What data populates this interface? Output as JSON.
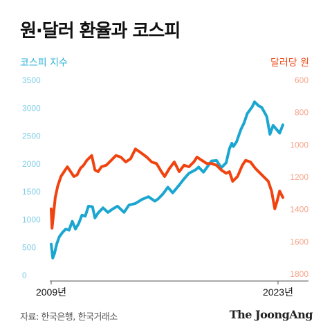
{
  "title": "원·달러 환율과 코스피",
  "source": "자료: 한국은행, 한국거래소",
  "brand": "The JoongAng",
  "colors": {
    "kospi": "#1aa6d0",
    "kospi_tick": "#7fcde6",
    "krw": "#f0430f",
    "krw_tick": "#f6a48c",
    "axis": "#555555"
  },
  "chart_data": {
    "type": "line",
    "x_labels": [
      "2009년",
      "2023년"
    ],
    "x_range": [
      2009,
      2023.3
    ],
    "left_axis": {
      "label": "코스피 지수",
      "ticks": [
        "3500",
        "3000",
        "2500",
        "2000",
        "1500",
        "1000",
        "500",
        "0"
      ],
      "range": [
        0,
        3500
      ]
    },
    "right_axis": {
      "label": "달러당 원",
      "ticks": [
        "600",
        "800",
        "1000",
        "1200",
        "1400",
        "1600",
        "1800"
      ],
      "range": [
        600,
        1800
      ],
      "inverted": true
    },
    "series": [
      {
        "name": "코스피 지수",
        "axis": "left",
        "x": [
          2009.0,
          2009.1,
          2009.2,
          2009.35,
          2009.5,
          2009.7,
          2009.9,
          2010.1,
          2010.3,
          2010.5,
          2010.7,
          2010.9,
          2011.1,
          2011.3,
          2011.55,
          2011.7,
          2011.9,
          2012.2,
          2012.5,
          2012.8,
          2013.1,
          2013.5,
          2013.8,
          2014.2,
          2014.6,
          2015.0,
          2015.4,
          2015.6,
          2015.9,
          2016.2,
          2016.5,
          2016.9,
          2017.2,
          2017.5,
          2017.9,
          2018.1,
          2018.4,
          2018.7,
          2018.9,
          2019.2,
          2019.5,
          2019.8,
          2020.0,
          2020.15,
          2020.25,
          2020.45,
          2020.7,
          2020.9,
          2021.1,
          2021.4,
          2021.55,
          2021.8,
          2022.0,
          2022.3,
          2022.5,
          2022.7,
          2022.9,
          2023.1,
          2023.3
        ],
        "y": [
          550,
          300,
          380,
          560,
          680,
          760,
          820,
          800,
          960,
          820,
          920,
          1070,
          1050,
          1230,
          1220,
          1020,
          1110,
          1200,
          1120,
          1180,
          1230,
          1120,
          1250,
          1280,
          1350,
          1400,
          1320,
          1360,
          1450,
          1570,
          1470,
          1610,
          1720,
          1820,
          1880,
          1930,
          1840,
          1960,
          2040,
          2050,
          1920,
          2010,
          2260,
          2360,
          2300,
          2390,
          2600,
          2720,
          2890,
          3010,
          3100,
          3030,
          3000,
          2840,
          2520,
          2680,
          2610,
          2540,
          2690
        ]
      },
      {
        "name": "달러당 원",
        "axis": "right",
        "x": [
          2009.0,
          2009.05,
          2009.15,
          2009.25,
          2009.4,
          2009.6,
          2009.8,
          2010.0,
          2010.2,
          2010.4,
          2010.6,
          2010.8,
          2011.0,
          2011.2,
          2011.5,
          2011.7,
          2011.9,
          2012.1,
          2012.4,
          2012.7,
          2013.0,
          2013.3,
          2013.6,
          2013.9,
          2014.2,
          2014.5,
          2014.9,
          2015.2,
          2015.5,
          2015.8,
          2016.0,
          2016.3,
          2016.6,
          2016.9,
          2017.2,
          2017.5,
          2017.8,
          2018.0,
          2018.3,
          2018.6,
          2018.9,
          2019.2,
          2019.5,
          2019.8,
          2020.0,
          2020.2,
          2020.5,
          2020.8,
          2021.0,
          2021.3,
          2021.6,
          2021.9,
          2022.1,
          2022.4,
          2022.6,
          2022.8,
          2022.95,
          2023.1,
          2023.3
        ],
        "y": [
          1400,
          1520,
          1430,
          1330,
          1260,
          1200,
          1170,
          1140,
          1170,
          1200,
          1190,
          1150,
          1130,
          1100,
          1070,
          1160,
          1170,
          1140,
          1130,
          1100,
          1070,
          1080,
          1110,
          1090,
          1030,
          1050,
          1080,
          1110,
          1120,
          1170,
          1200,
          1150,
          1110,
          1170,
          1130,
          1140,
          1110,
          1080,
          1100,
          1120,
          1120,
          1130,
          1160,
          1180,
          1170,
          1230,
          1200,
          1130,
          1100,
          1110,
          1150,
          1180,
          1200,
          1230,
          1290,
          1400,
          1350,
          1290,
          1330
        ]
      }
    ]
  }
}
